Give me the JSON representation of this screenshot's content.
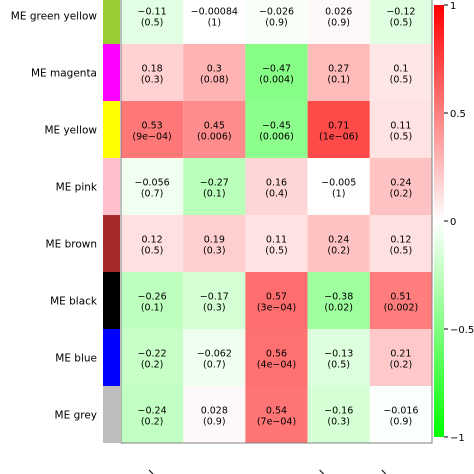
{
  "chart_data": {
    "type": "heatmap",
    "title": "",
    "xlabel": "",
    "ylabel": "",
    "rows": [
      "ME green yellow",
      "ME magenta",
      "ME yellow",
      "ME pink",
      "ME brown",
      "ME black",
      "ME blue",
      "ME grey"
    ],
    "module_colors": [
      "#9acd32",
      "#ff00ff",
      "#ffff00",
      "#ffc0cb",
      "#a52a2a",
      "#000000",
      "#0000ff",
      "#bebebe"
    ],
    "values": [
      [
        -0.11,
        -0.00084,
        -0.026,
        0.026,
        -0.12
      ],
      [
        0.18,
        0.3,
        -0.47,
        0.27,
        0.1
      ],
      [
        0.53,
        0.45,
        -0.45,
        0.71,
        0.11
      ],
      [
        -0.056,
        -0.27,
        0.16,
        -0.005,
        0.24
      ],
      [
        0.12,
        0.19,
        0.11,
        0.24,
        0.12
      ],
      [
        -0.26,
        -0.17,
        0.57,
        -0.38,
        0.51
      ],
      [
        -0.22,
        -0.062,
        0.56,
        -0.13,
        0.21
      ],
      [
        -0.24,
        0.028,
        0.54,
        -0.16,
        -0.016
      ]
    ],
    "value_labels": [
      [
        "−0.11",
        "−0.00084",
        "−0.026",
        "0.026",
        "−0.12"
      ],
      [
        "0.18",
        "0.3",
        "−0.47",
        "0.27",
        "0.1"
      ],
      [
        "0.53",
        "0.45",
        "−0.45",
        "0.71",
        "0.11"
      ],
      [
        "−0.056",
        "−0.27",
        "0.16",
        "−0.005",
        "0.24"
      ],
      [
        "0.12",
        "0.19",
        "0.11",
        "0.24",
        "0.12"
      ],
      [
        "−0.26",
        "−0.17",
        "0.57",
        "−0.38",
        "0.51"
      ],
      [
        "−0.22",
        "−0.062",
        "0.56",
        "−0.13",
        "0.21"
      ],
      [
        "−0.24",
        "0.028",
        "0.54",
        "−0.16",
        "−0.016"
      ]
    ],
    "p_labels": [
      [
        "(0.5)",
        "(1)",
        "(0.9)",
        "(0.9)",
        "(0.5)"
      ],
      [
        "(0.3)",
        "(0.08)",
        "(0.004)",
        "(0.1)",
        "(0.5)"
      ],
      [
        "(9e−04)",
        "(0.006)",
        "(0.006)",
        "(1e−06)",
        "(0.5)"
      ],
      [
        "(0.7)",
        "(0.1)",
        "(0.4)",
        "(1)",
        "(0.2)"
      ],
      [
        "(0.5)",
        "(0.3)",
        "(0.5)",
        "(0.2)",
        "(0.5)"
      ],
      [
        "(0.1)",
        "(0.3)",
        "(3e−04)",
        "(0.02)",
        "(0.002)"
      ],
      [
        "(0.2)",
        "(0.7)",
        "(4e−04)",
        "(0.5)",
        "(0.2)"
      ],
      [
        "(0.2)",
        "(0.9)",
        "(7e−04)",
        "(0.3)",
        "(0.9)"
      ]
    ],
    "colorscale": {
      "min": -1,
      "max": 1,
      "low_color": "#00ff00",
      "mid_color": "#ffffff",
      "high_color": "#ff0000"
    },
    "colorbar_ticks": [
      {
        "value": 1,
        "label": "1"
      },
      {
        "value": 0.5,
        "label": "0.5"
      },
      {
        "value": 0,
        "label": "0"
      },
      {
        "value": -0.5,
        "label": "−0.5"
      },
      {
        "value": -1,
        "label": "−1"
      }
    ],
    "grid": false,
    "legend": "right"
  }
}
